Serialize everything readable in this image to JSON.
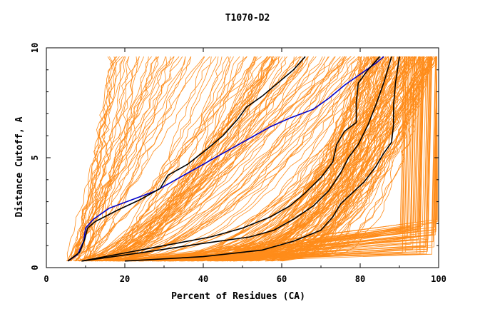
{
  "chart_data": {
    "type": "line",
    "title": "T1070-D2",
    "xlabel": "Percent of Residues (CA)",
    "ylabel": "Distance Cutoff, A",
    "xlim": [
      0,
      100
    ],
    "ylim": [
      0,
      10
    ],
    "x_ticks": [
      "0",
      "20",
      "40",
      "60",
      "80",
      "100"
    ],
    "y_ticks": [
      "0",
      "5",
      "10"
    ],
    "grid": false,
    "legend": "none",
    "colors": {
      "background_curves": "#ff8c1a",
      "highlight": "#000000",
      "reference": "#0000cc",
      "axis": "#000000"
    },
    "highlighted_series": [
      {
        "color": "#0000cc",
        "points": [
          [
            5.5,
            0.3
          ],
          [
            8,
            0.6
          ],
          [
            9.5,
            1.2
          ],
          [
            10,
            1.8
          ],
          [
            12,
            2.2
          ],
          [
            16,
            2.7
          ],
          [
            22,
            3.1
          ],
          [
            28,
            3.5
          ],
          [
            33,
            4.0
          ],
          [
            38,
            4.5
          ],
          [
            42,
            4.9
          ],
          [
            47,
            5.4
          ],
          [
            52,
            5.9
          ],
          [
            57,
            6.4
          ],
          [
            62,
            6.8
          ],
          [
            68,
            7.2
          ],
          [
            72,
            7.7
          ],
          [
            76,
            8.3
          ],
          [
            80,
            8.8
          ],
          [
            84,
            9.3
          ],
          [
            86,
            9.6
          ]
        ]
      },
      {
        "color": "#000000",
        "points": [
          [
            5.5,
            0.3
          ],
          [
            8.5,
            0.7
          ],
          [
            9.8,
            1.3
          ],
          [
            10.5,
            1.8
          ],
          [
            12.5,
            2.1
          ],
          [
            18,
            2.6
          ],
          [
            24,
            3.1
          ],
          [
            29,
            3.6
          ],
          [
            31,
            4.2
          ],
          [
            36,
            4.7
          ],
          [
            41,
            5.4
          ],
          [
            45,
            6.0
          ],
          [
            49,
            6.8
          ],
          [
            51,
            7.3
          ],
          [
            55,
            7.8
          ],
          [
            59,
            8.4
          ],
          [
            63,
            9.0
          ],
          [
            66,
            9.6
          ]
        ]
      },
      {
        "color": "#000000",
        "points": [
          [
            9,
            0.3
          ],
          [
            18,
            0.6
          ],
          [
            30,
            1.0
          ],
          [
            42,
            1.4
          ],
          [
            50,
            1.8
          ],
          [
            57,
            2.3
          ],
          [
            62,
            2.8
          ],
          [
            66,
            3.4
          ],
          [
            70,
            4.1
          ],
          [
            73,
            4.8
          ],
          [
            74,
            5.6
          ],
          [
            76,
            6.2
          ],
          [
            79,
            6.6
          ],
          [
            79,
            7.5
          ],
          [
            79.5,
            8.4
          ],
          [
            82,
            9.0
          ],
          [
            85,
            9.6
          ]
        ]
      },
      {
        "color": "#000000",
        "points": [
          [
            9,
            0.3
          ],
          [
            25,
            0.7
          ],
          [
            40,
            1.1
          ],
          [
            52,
            1.4
          ],
          [
            58,
            1.7
          ],
          [
            63,
            2.2
          ],
          [
            68,
            2.8
          ],
          [
            72,
            3.5
          ],
          [
            75,
            4.3
          ],
          [
            77,
            5.0
          ],
          [
            79.5,
            5.6
          ],
          [
            82,
            6.5
          ],
          [
            84,
            7.4
          ],
          [
            86,
            8.4
          ],
          [
            87,
            9.0
          ],
          [
            88,
            9.6
          ]
        ]
      },
      {
        "color": "#000000",
        "points": [
          [
            20,
            0.3
          ],
          [
            40,
            0.5
          ],
          [
            55,
            0.8
          ],
          [
            63,
            1.2
          ],
          [
            70,
            1.7
          ],
          [
            73,
            2.3
          ],
          [
            75,
            2.9
          ],
          [
            78,
            3.4
          ],
          [
            81,
            3.9
          ],
          [
            84,
            4.6
          ],
          [
            86,
            5.2
          ],
          [
            88,
            5.7
          ],
          [
            88.5,
            6.5
          ],
          [
            88.5,
            7.4
          ],
          [
            89,
            8.4
          ],
          [
            89.5,
            9.0
          ],
          [
            90,
            9.6
          ]
        ]
      }
    ]
  }
}
